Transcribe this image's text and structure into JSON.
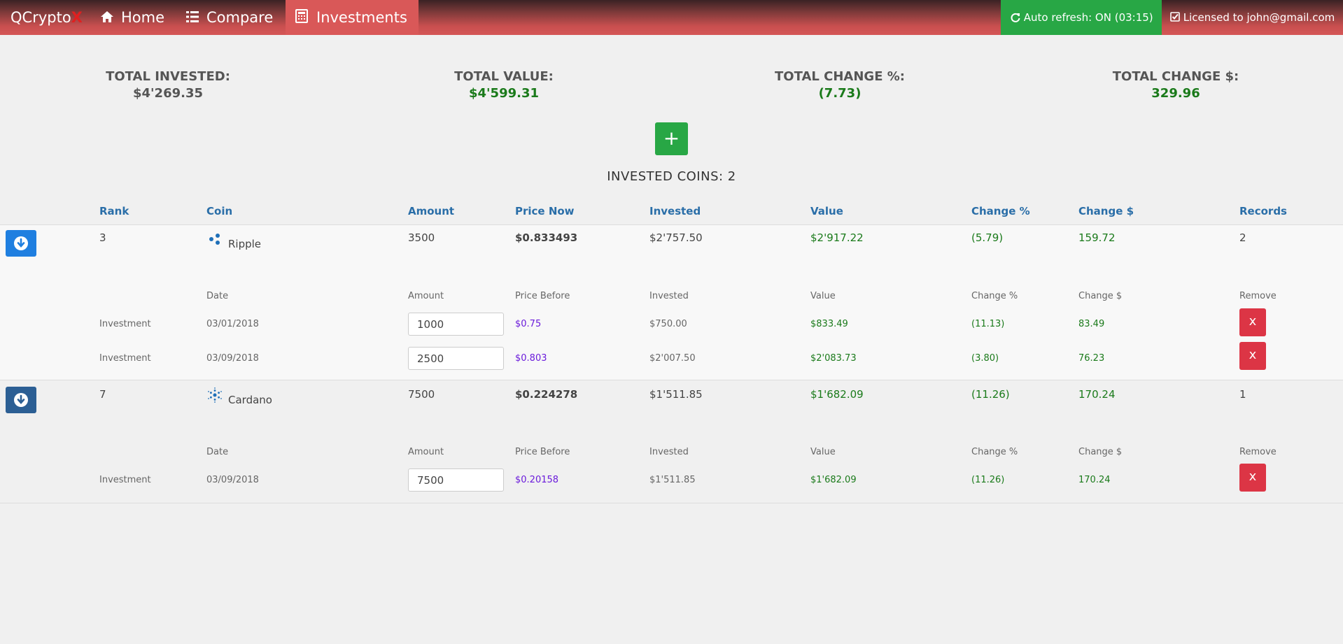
{
  "app": {
    "brand": "QCrypto",
    "brand_x": "X"
  },
  "nav": {
    "home": "Home",
    "compare": "Compare",
    "investments": "Investments"
  },
  "auto_refresh": "Auto refresh: ON (03:15)",
  "license": "Licensed to john@gmail.com",
  "totals": {
    "invested_label": "TOTAL INVESTED:",
    "invested_value": "$4'269.35",
    "value_label": "TOTAL VALUE:",
    "value_value": "$4'599.31",
    "change_pct_label": "TOTAL CHANGE %:",
    "change_pct_value": "(7.73)",
    "change_usd_label": "TOTAL CHANGE $:",
    "change_usd_value": "329.96"
  },
  "add_button": "+",
  "invested_coins": "INVESTED COINS: 2",
  "headers": [
    "Rank",
    "Coin",
    "Amount",
    "Price Now",
    "Invested",
    "Value",
    "Change %",
    "Change $",
    "Records"
  ],
  "sub_headers": [
    "Date",
    "Amount",
    "Price Before",
    "Invested",
    "Value",
    "Change %",
    "Change $",
    "Remove"
  ],
  "coins": [
    {
      "rank": "3",
      "coin": "Ripple",
      "amount": "3500",
      "price_now": "$0.833493",
      "invested": "$2'757.50",
      "value": "$2'917.22",
      "change_pct": "(5.79)",
      "change_usd": "159.72",
      "records": "2",
      "investments": [
        {
          "type": "Investment",
          "date": "03/01/2018",
          "amount": "1000",
          "price_before": "$0.75",
          "invested": "$750.00",
          "value": "$833.49",
          "change_pct": "(11.13)",
          "change_usd": "83.49",
          "remove": "x"
        },
        {
          "type": "Investment",
          "date": "03/09/2018",
          "amount": "2500",
          "price_before": "$0.803",
          "invested": "$2'007.50",
          "value": "$2'083.73",
          "change_pct": "(3.80)",
          "change_usd": "76.23",
          "remove": "x"
        }
      ]
    },
    {
      "rank": "7",
      "coin": "Cardano",
      "amount": "7500",
      "price_now": "$0.224278",
      "invested": "$1'511.85",
      "value": "$1'682.09",
      "change_pct": "(11.26)",
      "change_usd": "170.24",
      "records": "1",
      "investments": [
        {
          "type": "Investment",
          "date": "03/09/2018",
          "amount": "7500",
          "price_before": "$0.20158",
          "invested": "$1'511.85",
          "value": "$1'682.09",
          "change_pct": "(11.26)",
          "change_usd": "170.24",
          "remove": "x"
        }
      ]
    }
  ]
}
